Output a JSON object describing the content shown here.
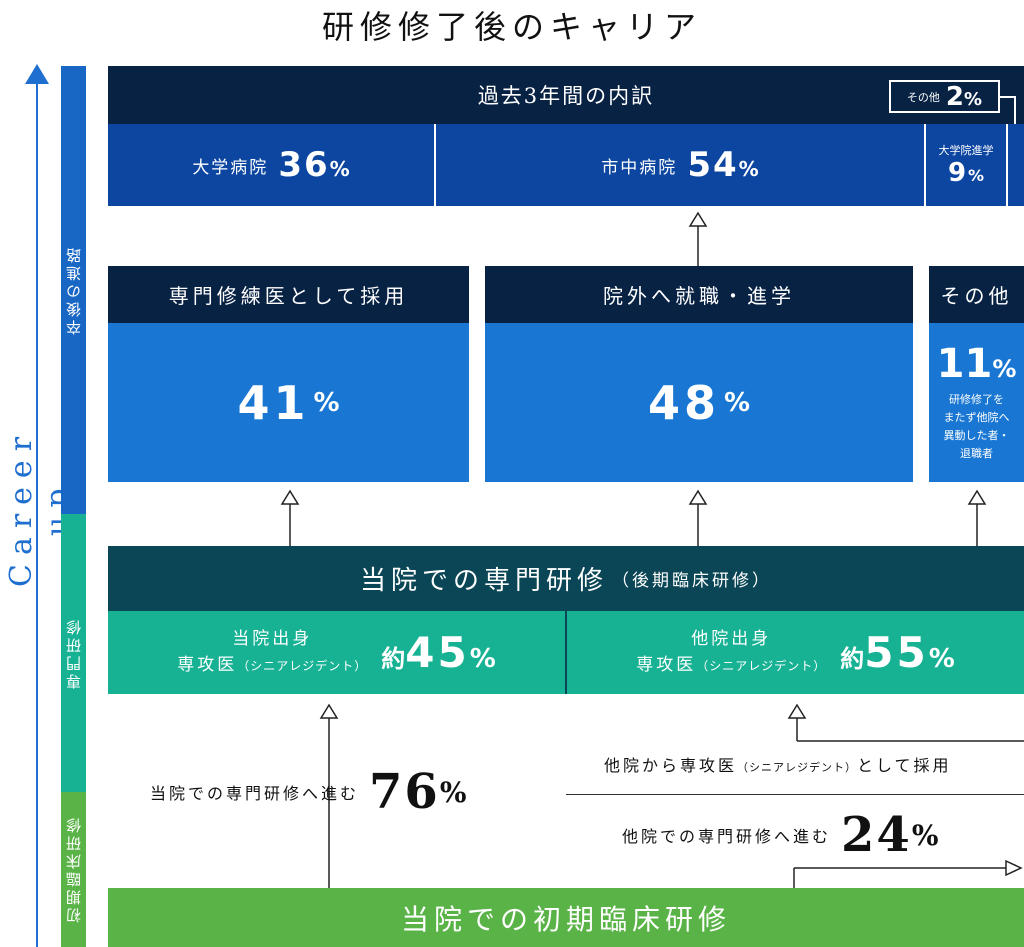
{
  "title": "研修修了後のキャリア",
  "axis": {
    "label": "Career up",
    "color": "#1e6fd0"
  },
  "stages": {
    "career": "卒後の進路",
    "specialist": "専門研修",
    "initial": "初期臨床研修"
  },
  "breakdown": {
    "header": "過去3年間の内訳",
    "other": {
      "label": "その他",
      "value": "2",
      "unit": "%"
    },
    "university_hospital": {
      "label": "大学病院",
      "value": "36",
      "unit": "%"
    },
    "city_hospital": {
      "label": "市中病院",
      "value": "54",
      "unit": "%"
    },
    "graduate_school": {
      "label": "大学院進学",
      "value": "9",
      "unit": "%"
    }
  },
  "outcomes": {
    "hired": {
      "label": "専門修練医として採用",
      "value": "41",
      "unit": "%"
    },
    "external": {
      "label": "院外へ就職・進学",
      "value": "48",
      "unit": "%"
    },
    "other": {
      "label": "その他",
      "value": "11",
      "unit": "%",
      "note": [
        "研修修了を",
        "またず他院へ",
        "異動した者・",
        "退職者"
      ]
    }
  },
  "specialist_training": {
    "title": "当院での専門研修",
    "subtitle": "（後期臨床研修）",
    "internal": {
      "line1": "当院出身",
      "line2": "専攻医",
      "line2_small": "（シニアレジデント）",
      "approx": "約",
      "value": "45",
      "unit": "%"
    },
    "external": {
      "line1": "他院出身",
      "line2": "専攻医",
      "line2_small": "（シニアレジデント）",
      "approx": "約",
      "value": "55",
      "unit": "%"
    }
  },
  "flows": {
    "advance_internal": {
      "label": "当院での専門研修へ進む",
      "value": "76",
      "unit": "%"
    },
    "hired_from_other": {
      "label_a": "他院から専攻医",
      "label_small": "（シニアレジデント）",
      "label_b": "として採用"
    },
    "advance_other": {
      "label": "他院での専門研修へ進む",
      "value": "24",
      "unit": "%"
    }
  },
  "initial_training": "当院での初期臨床研修",
  "colors": {
    "navy": "#082244",
    "blue_dark": "#0d46a0",
    "blue": "#1977d3",
    "teal_dark": "#0a4655",
    "teal": "#17b294",
    "green": "#5ab347"
  }
}
